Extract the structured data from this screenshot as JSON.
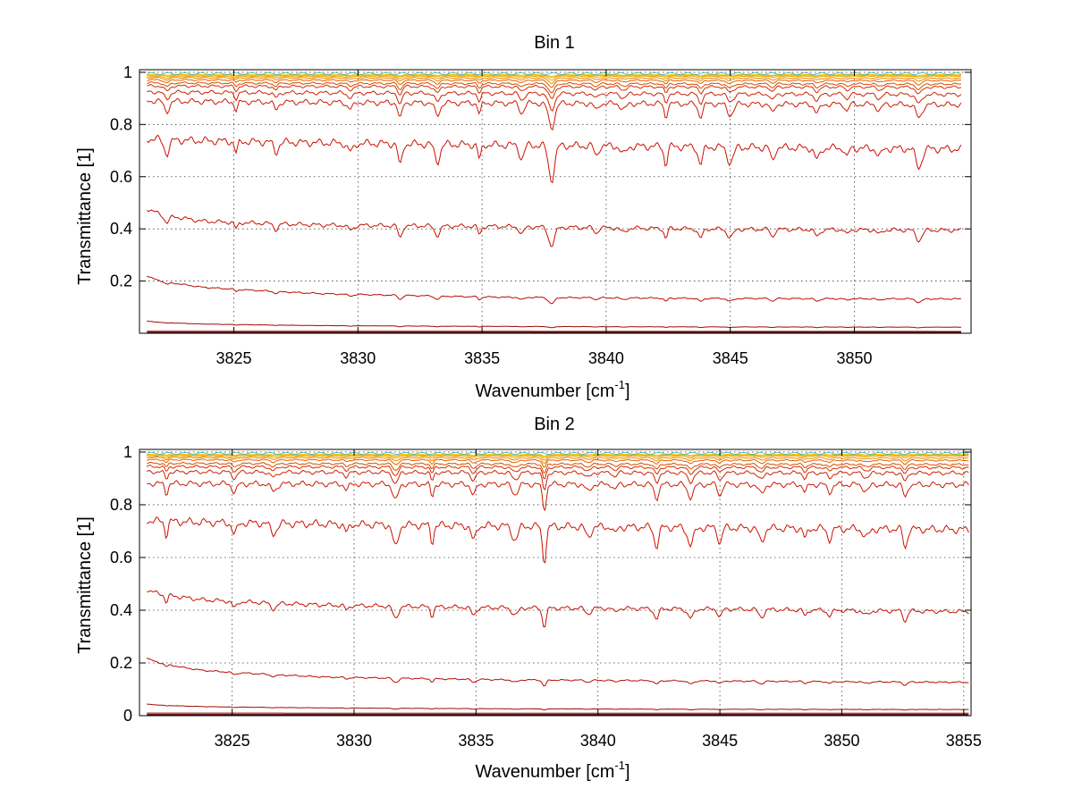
{
  "chart_data": [
    {
      "type": "line",
      "title": "Bin 1",
      "xlabel": "Wavenumber [cm",
      "xlabel_sup": "-1",
      "xlabel_end": "]",
      "ylabel": "Transmittance [1]",
      "xlim": [
        3821.2,
        3854.7
      ],
      "ylim": [
        0,
        1.01
      ],
      "x_range": [
        3821.5,
        3854.3
      ],
      "xticks": [
        3825,
        3830,
        3835,
        3840,
        3845,
        3850
      ],
      "xtick_labels": [
        "3825",
        "3830",
        "3835",
        "3840",
        "3845",
        "3850"
      ],
      "yticks": [
        0.2,
        0.4,
        0.6,
        0.8,
        1
      ],
      "ytick_labels": [
        "0.2",
        "0.4",
        "0.6",
        "0.8",
        "1"
      ],
      "grid": true,
      "absorption_lines": [
        3822.3,
        3825.1,
        3826.7,
        3829.7,
        3831.7,
        3833.2,
        3834.9,
        3836.6,
        3837.8,
        3839.6,
        3840.7,
        3842.4,
        3843.8,
        3845.0,
        3846.7,
        3848.5,
        3849.7,
        3851.0,
        3852.6
      ],
      "series": [
        {
          "values": [
            0.992,
            0.992
          ],
          "color": "#f2c200",
          "depth": 0.003
        },
        {
          "values": [
            0.99,
            0.99
          ],
          "color": "#e8b400",
          "depth": 0.004
        },
        {
          "values": [
            0.986,
            0.987
          ],
          "color": "#f0a000",
          "depth": 0.006
        },
        {
          "values": [
            0.982,
            0.98
          ],
          "color": "#e88a00",
          "depth": 0.008
        },
        {
          "values": [
            0.975,
            0.972
          ],
          "color": "#e06000",
          "depth": 0.011
        },
        {
          "values": [
            0.965,
            0.96
          ],
          "color": "#d84a00",
          "depth": 0.015
        },
        {
          "values": [
            0.955,
            0.95
          ],
          "color": "#d03000",
          "depth": 0.02
        },
        {
          "values": [
            0.935,
            0.925
          ],
          "color": "#d02000",
          "depth": 0.028
        },
        {
          "values": [
            0.905,
            0.89
          ],
          "color": "#cc1a00",
          "depth": 0.04
        },
        {
          "values": [
            0.765,
            0.725
          ],
          "color": "#cc1100",
          "depth": 0.055
        },
        {
          "values": [
            0.49,
            0.44,
            0.425,
            0.42,
            0.41,
            0.405
          ],
          "color": "#c41000",
          "depth": 0.03
        },
        {
          "values": [
            0.225,
            0.18,
            0.155,
            0.142,
            0.137,
            0.135
          ],
          "color": "#b80c00",
          "depth": 0.01
        },
        {
          "values": [
            0.048,
            0.036,
            0.03,
            0.027,
            0.025,
            0.024
          ],
          "color": "#a00800",
          "depth": 0.002
        },
        {
          "values": [
            0.008,
            0.007
          ],
          "color": "#8b0000",
          "depth": 0.0
        },
        {
          "values": [
            0.002,
            0.002
          ],
          "color": "#5a0000",
          "depth": 0.0
        }
      ]
    },
    {
      "type": "line",
      "title": "Bin 2",
      "xlabel": "Wavenumber [cm",
      "xlabel_sup": "-1",
      "xlabel_end": "]",
      "ylabel": "Transmittance [1]",
      "xlim": [
        3821.2,
        3855.3
      ],
      "ylim": [
        0,
        1.01
      ],
      "x_range": [
        3821.5,
        3855.2
      ],
      "xticks": [
        3825,
        3830,
        3835,
        3840,
        3845,
        3850,
        3855
      ],
      "xtick_labels": [
        "3825",
        "3830",
        "3835",
        "3840",
        "3845",
        "3850",
        "3855"
      ],
      "yticks": [
        0,
        0.2,
        0.4,
        0.6,
        0.8,
        1
      ],
      "ytick_labels": [
        "0",
        "0.2",
        "0.4",
        "0.6",
        "0.8",
        "1"
      ],
      "grid": true,
      "absorption_lines": [
        3822.3,
        3825.1,
        3826.7,
        3829.7,
        3831.7,
        3833.2,
        3834.9,
        3836.6,
        3837.8,
        3839.6,
        3840.7,
        3842.4,
        3843.8,
        3845.0,
        3846.7,
        3848.5,
        3849.5,
        3851.0,
        3852.6
      ],
      "series": [
        {
          "values": [
            0.992,
            0.992
          ],
          "color": "#f2c200",
          "depth": 0.003
        },
        {
          "values": [
            0.99,
            0.99
          ],
          "color": "#e8b400",
          "depth": 0.004
        },
        {
          "values": [
            0.986,
            0.987
          ],
          "color": "#f0a000",
          "depth": 0.006
        },
        {
          "values": [
            0.982,
            0.98
          ],
          "color": "#e88a00",
          "depth": 0.008
        },
        {
          "values": [
            0.975,
            0.972
          ],
          "color": "#e06000",
          "depth": 0.011
        },
        {
          "values": [
            0.963,
            0.958
          ],
          "color": "#d84a00",
          "depth": 0.015
        },
        {
          "values": [
            0.952,
            0.948
          ],
          "color": "#d03000",
          "depth": 0.02
        },
        {
          "values": [
            0.935,
            0.93
          ],
          "color": "#d02000",
          "depth": 0.028
        },
        {
          "values": [
            0.895,
            0.89
          ],
          "color": "#cc1a00",
          "depth": 0.04
        },
        {
          "values": [
            0.76,
            0.725
          ],
          "color": "#cc1100",
          "depth": 0.055
        },
        {
          "values": [
            0.49,
            0.45,
            0.43,
            0.42,
            0.415,
            0.405
          ],
          "color": "#c41000",
          "depth": 0.03
        },
        {
          "values": [
            0.225,
            0.175,
            0.15,
            0.14,
            0.135,
            0.13
          ],
          "color": "#b80c00",
          "depth": 0.01
        },
        {
          "values": [
            0.045,
            0.035,
            0.03,
            0.027,
            0.025,
            0.024
          ],
          "color": "#a00800",
          "depth": 0.002
        },
        {
          "values": [
            0.01,
            0.009
          ],
          "color": "#8b0000",
          "depth": 0.0
        },
        {
          "values": [
            0.003,
            0.003
          ],
          "color": "#5a0000",
          "depth": 0.0
        }
      ]
    }
  ]
}
